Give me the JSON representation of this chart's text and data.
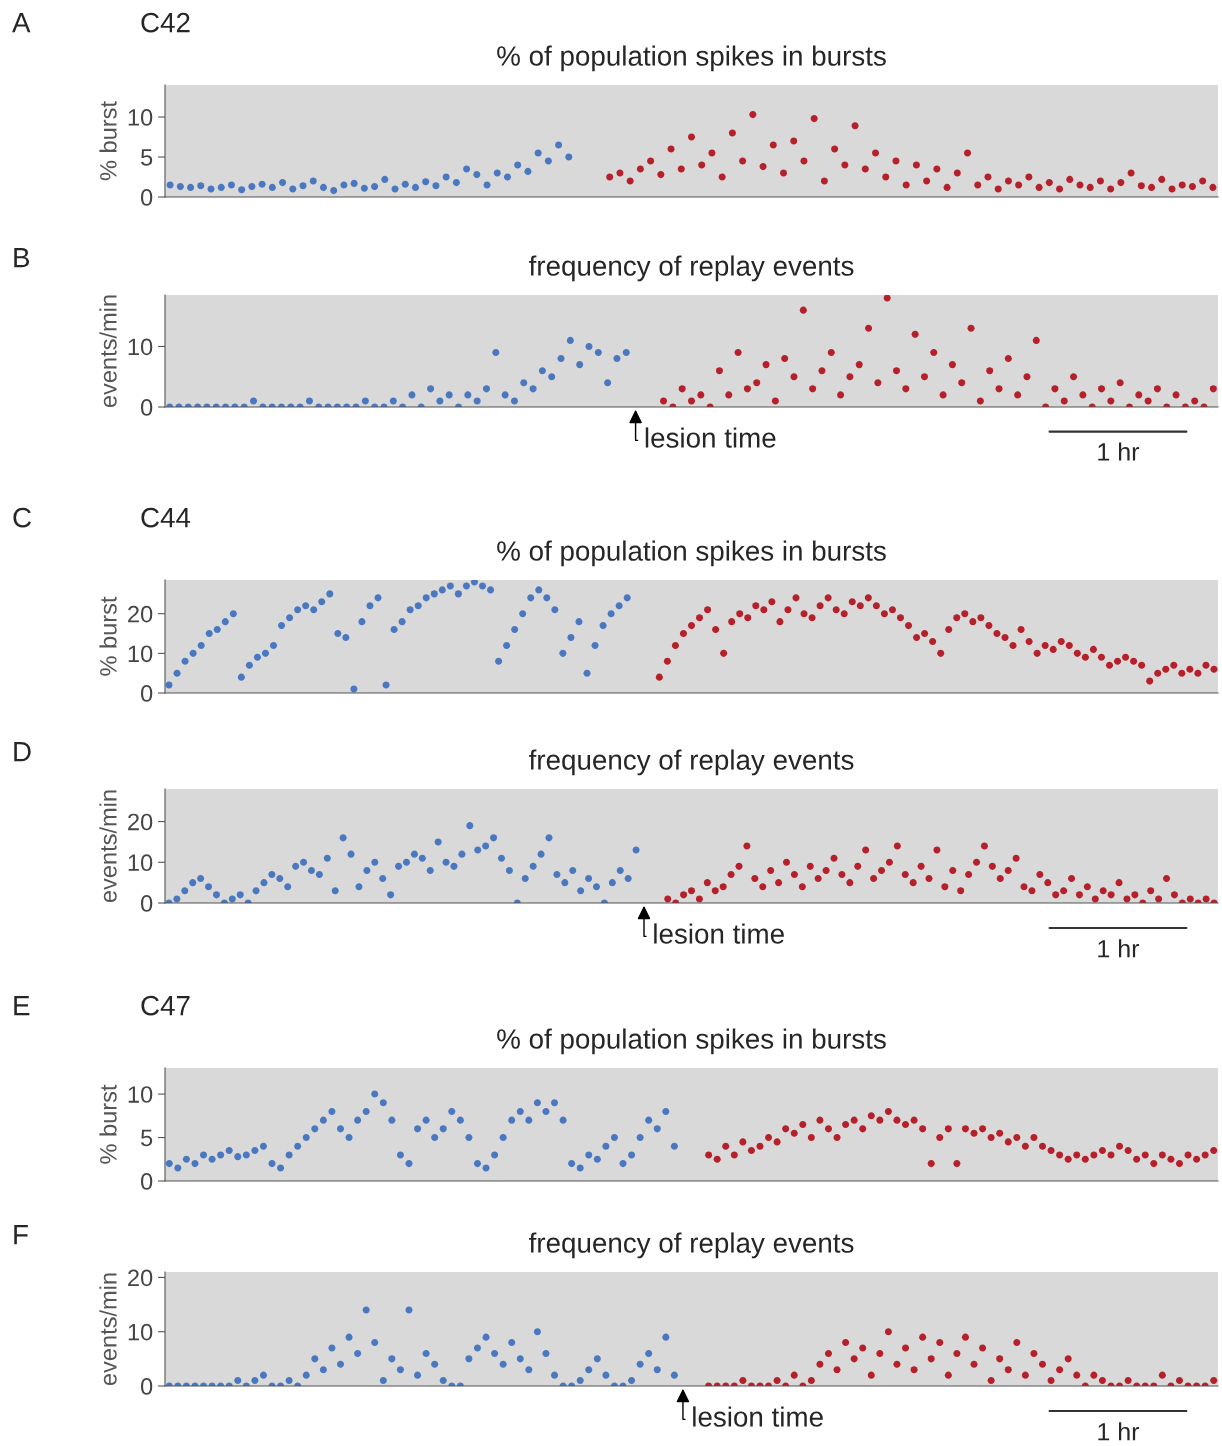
{
  "chart_data": [
    {
      "type": "scatter",
      "title": "% of population spikes in bursts",
      "ylabel": "% burst",
      "annotations": [
        "A",
        "C42"
      ],
      "marker": "circle",
      "tick_labels": "y",
      "ylim": [
        0,
        14
      ],
      "yticks": [
        0,
        5,
        10
      ],
      "categories": [
        null,
        null,
        null,
        null,
        null,
        null,
        null,
        null,
        null,
        null,
        null,
        null,
        null,
        null,
        null,
        null,
        null,
        null,
        null,
        null,
        null,
        null,
        null,
        null,
        null,
        null,
        null,
        null,
        null,
        null,
        null,
        null,
        null,
        null,
        null,
        null,
        null,
        null,
        null,
        null,
        null,
        null,
        null,
        null,
        null,
        null,
        null,
        null,
        null,
        null,
        null,
        null,
        null,
        null,
        null,
        null,
        null,
        null,
        null,
        null,
        null,
        null,
        null,
        null,
        null,
        null,
        null,
        null,
        null,
        null,
        null,
        null,
        null,
        null,
        null,
        null,
        null,
        null,
        null,
        null,
        null,
        null,
        null,
        null,
        null,
        null,
        null,
        null,
        null,
        null,
        null,
        null,
        null,
        null,
        null,
        null,
        null,
        null,
        null,
        null,
        null,
        null,
        null
      ],
      "series": [
        {
          "color": "#4a78c0",
          "values": [
            1.5,
            1.3,
            1.2,
            1.4,
            1.0,
            1.2,
            1.5,
            0.9,
            1.3,
            1.6,
            1.2,
            1.8,
            1.0,
            1.4,
            2.0,
            1.2,
            0.8,
            1.5,
            1.7,
            1.1,
            1.3,
            2.2,
            1.0,
            1.6,
            1.2,
            1.9,
            1.4,
            2.5,
            1.8,
            3.5,
            2.8,
            1.5,
            3.0,
            2.5,
            4.0,
            3.2,
            5.5,
            4.5,
            6.5,
            5.0,
            null,
            null,
            null,
            null,
            null,
            null,
            null,
            null,
            null,
            null,
            null,
            null,
            null,
            null,
            null,
            null,
            null,
            null,
            null,
            null,
            null,
            null,
            null,
            null,
            null,
            null,
            null,
            null,
            null,
            null,
            null,
            null,
            null,
            null,
            null,
            null,
            null,
            null,
            null,
            null,
            null,
            null,
            null,
            null,
            null,
            null,
            null,
            null,
            null,
            null,
            null,
            null,
            null,
            null,
            null,
            null,
            null,
            null,
            null,
            null,
            null,
            null,
            null
          ]
        },
        {
          "color": "#b5202a",
          "values": [
            null,
            null,
            null,
            null,
            null,
            null,
            null,
            null,
            null,
            null,
            null,
            null,
            null,
            null,
            null,
            null,
            null,
            null,
            null,
            null,
            null,
            null,
            null,
            null,
            null,
            null,
            null,
            null,
            null,
            null,
            null,
            null,
            null,
            null,
            null,
            null,
            null,
            null,
            null,
            null,
            null,
            null,
            null,
            2.5,
            3.0,
            2.0,
            3.5,
            4.5,
            2.8,
            6.0,
            3.5,
            7.5,
            4.0,
            5.5,
            2.5,
            8.0,
            4.5,
            10.3,
            3.8,
            6.5,
            3.0,
            7.0,
            4.5,
            9.8,
            2.0,
            6.0,
            4.0,
            8.9,
            3.5,
            5.5,
            2.5,
            4.5,
            1.5,
            4.0,
            2.0,
            3.5,
            1.2,
            3.0,
            5.5,
            1.5,
            2.5,
            1.0,
            2.0,
            1.5,
            2.5,
            1.2,
            1.8,
            1.0,
            2.2,
            1.5,
            1.2,
            2.0,
            1.0,
            1.8,
            3.0,
            1.4,
            1.2,
            2.2,
            1.0,
            1.5,
            1.3,
            2.0,
            1.2
          ]
        }
      ]
    },
    {
      "type": "scatter",
      "title": "frequency of replay events",
      "ylabel": "events/min",
      "annotations": [
        "B",
        "lesion time",
        "1 hr"
      ],
      "marker": "circle",
      "tick_labels": "y",
      "ylim": [
        0,
        18.5
      ],
      "yticks": [
        0,
        10
      ],
      "categories": [
        null,
        null,
        null,
        null,
        null,
        null,
        null,
        null,
        null,
        null,
        null,
        null,
        null,
        null,
        null,
        null,
        null,
        null,
        null,
        null,
        null,
        null,
        null,
        null,
        null,
        null,
        null,
        null,
        null,
        null,
        null,
        null,
        null,
        null,
        null,
        null,
        null,
        null,
        null,
        null,
        null,
        null,
        null,
        null,
        null,
        null,
        null,
        null,
        null,
        null,
        null,
        null,
        null,
        null,
        null,
        null,
        null,
        null,
        null,
        null,
        null,
        null,
        null,
        null,
        null,
        null,
        null,
        null,
        null,
        null,
        null,
        null,
        null,
        null,
        null,
        null,
        null,
        null,
        null,
        null,
        null,
        null,
        null,
        null,
        null,
        null,
        null,
        null,
        null,
        null,
        null,
        null,
        null,
        null,
        null,
        null,
        null,
        null,
        null,
        null,
        null,
        null,
        null,
        null,
        null,
        null,
        null,
        null,
        null,
        null,
        null,
        null,
        null
      ],
      "series": [
        {
          "color": "#4a78c0",
          "values": [
            0,
            0,
            0,
            0,
            0,
            0,
            0,
            0,
            0,
            1,
            0,
            0,
            0,
            0,
            0,
            1,
            0,
            0,
            0,
            0,
            0,
            1,
            0,
            0,
            1,
            0,
            2,
            0,
            3,
            1,
            2,
            0,
            2,
            1,
            3,
            9,
            2,
            1,
            4,
            3,
            6,
            5,
            8,
            11,
            7,
            10,
            9,
            4,
            8,
            9,
            null,
            null,
            null,
            null,
            null,
            null,
            null,
            null,
            null,
            null,
            null,
            null,
            null,
            null,
            null,
            null,
            null,
            null,
            null,
            null,
            null,
            null,
            null,
            null,
            null,
            null,
            null,
            null,
            null,
            null,
            null,
            null,
            null,
            null,
            null,
            null,
            null,
            null,
            null,
            null,
            null,
            null,
            null,
            null,
            null,
            null,
            null,
            null,
            null,
            null,
            null,
            null,
            null,
            null,
            null,
            null,
            null,
            null,
            null,
            null,
            null,
            null,
            null
          ]
        },
        {
          "color": "#b5202a",
          "values": [
            null,
            null,
            null,
            null,
            null,
            null,
            null,
            null,
            null,
            null,
            null,
            null,
            null,
            null,
            null,
            null,
            null,
            null,
            null,
            null,
            null,
            null,
            null,
            null,
            null,
            null,
            null,
            null,
            null,
            null,
            null,
            null,
            null,
            null,
            null,
            null,
            null,
            null,
            null,
            null,
            null,
            null,
            null,
            null,
            null,
            null,
            null,
            null,
            null,
            null,
            null,
            null,
            null,
            1,
            0,
            3,
            1,
            2,
            0,
            6,
            2,
            9,
            3,
            4,
            7,
            1,
            8,
            5,
            16,
            3,
            6,
            9,
            2,
            5,
            7,
            13,
            4,
            18,
            6,
            3,
            12,
            5,
            9,
            2,
            7,
            4,
            13,
            1,
            6,
            3,
            8,
            2,
            5,
            11,
            0,
            3,
            1,
            5,
            2,
            0,
            3,
            1,
            4,
            0,
            2,
            1,
            3,
            0,
            2,
            0,
            1,
            0,
            3
          ]
        }
      ]
    },
    {
      "type": "scatter",
      "title": "% of population spikes in bursts",
      "ylabel": "% burst",
      "annotations": [
        "C",
        "C44"
      ],
      "marker": "circle",
      "tick_labels": "y",
      "ylim": [
        0,
        28.5
      ],
      "yticks": [
        0,
        10,
        20
      ],
      "categories": [
        null,
        null,
        null,
        null,
        null,
        null,
        null,
        null,
        null,
        null,
        null,
        null,
        null,
        null,
        null,
        null,
        null,
        null,
        null,
        null,
        null,
        null,
        null,
        null,
        null,
        null,
        null,
        null,
        null,
        null,
        null,
        null,
        null,
        null,
        null,
        null,
        null,
        null,
        null,
        null,
        null,
        null,
        null,
        null,
        null,
        null,
        null,
        null,
        null,
        null,
        null,
        null,
        null,
        null,
        null,
        null,
        null,
        null,
        null,
        null,
        null,
        null,
        null,
        null,
        null,
        null,
        null,
        null,
        null,
        null,
        null,
        null,
        null,
        null,
        null,
        null,
        null,
        null,
        null,
        null,
        null,
        null,
        null,
        null,
        null,
        null,
        null,
        null,
        null,
        null,
        null,
        null,
        null,
        null,
        null,
        null,
        null,
        null,
        null,
        null,
        null,
        null,
        null,
        null,
        null,
        null,
        null,
        null,
        null,
        null,
        null,
        null,
        null,
        null,
        null,
        null,
        null,
        null,
        null,
        null,
        null,
        null,
        null,
        null,
        null,
        null,
        null,
        null,
        null,
        null,
        null
      ],
      "series": [
        {
          "color": "#4a78c0",
          "values": [
            2,
            5,
            8,
            10,
            12,
            15,
            16,
            18,
            20,
            4,
            7,
            9,
            10,
            12,
            17,
            19,
            21,
            22,
            21,
            23,
            25,
            15,
            14,
            1,
            18,
            22,
            24,
            2,
            16,
            18,
            21,
            22,
            24,
            25,
            26,
            27,
            25,
            27,
            28,
            27,
            26,
            8,
            12,
            16,
            20,
            24,
            26,
            24,
            21,
            10,
            14,
            18,
            5,
            12,
            17,
            20,
            22,
            24,
            null,
            null,
            null,
            null,
            null,
            null,
            null,
            null,
            null,
            null,
            null,
            null,
            null,
            null,
            null,
            null,
            null,
            null,
            null,
            null,
            null,
            null,
            null,
            null,
            null,
            null,
            null,
            null,
            null,
            null,
            null,
            null,
            null,
            null,
            null,
            null,
            null,
            null,
            null,
            null,
            null,
            null,
            null,
            null,
            null,
            null,
            null,
            null,
            null,
            null,
            null,
            null,
            null,
            null,
            null,
            null,
            null,
            null,
            null,
            null,
            null,
            null,
            null,
            null,
            null,
            null,
            null,
            null,
            null,
            null,
            null,
            null,
            null
          ]
        },
        {
          "color": "#b5202a",
          "values": [
            null,
            null,
            null,
            null,
            null,
            null,
            null,
            null,
            null,
            null,
            null,
            null,
            null,
            null,
            null,
            null,
            null,
            null,
            null,
            null,
            null,
            null,
            null,
            null,
            null,
            null,
            null,
            null,
            null,
            null,
            null,
            null,
            null,
            null,
            null,
            null,
            null,
            null,
            null,
            null,
            null,
            null,
            null,
            null,
            null,
            null,
            null,
            null,
            null,
            null,
            null,
            null,
            null,
            null,
            null,
            null,
            null,
            null,
            null,
            null,
            null,
            4,
            8,
            12,
            15,
            17,
            19,
            21,
            16,
            10,
            18,
            20,
            19,
            22,
            21,
            23,
            18,
            21,
            24,
            20,
            19,
            22,
            24,
            21,
            20,
            23,
            22,
            24,
            22,
            20,
            21,
            19,
            17,
            14,
            15,
            13,
            10,
            16,
            19,
            20,
            18,
            19,
            17,
            15,
            14,
            12,
            16,
            13,
            10,
            12,
            11,
            13,
            12,
            10,
            9,
            11,
            9,
            7,
            8,
            9,
            8,
            7,
            3,
            5,
            6,
            7,
            5,
            6,
            5,
            7,
            6
          ]
        }
      ]
    },
    {
      "type": "scatter",
      "title": "frequency of replay events",
      "ylabel": "events/min",
      "annotations": [
        "D",
        "lesion time",
        "1 hr"
      ],
      "marker": "circle",
      "tick_labels": "y",
      "ylim": [
        0,
        28
      ],
      "yticks": [
        0,
        10,
        20
      ],
      "categories": [
        null,
        null,
        null,
        null,
        null,
        null,
        null,
        null,
        null,
        null,
        null,
        null,
        null,
        null,
        null,
        null,
        null,
        null,
        null,
        null,
        null,
        null,
        null,
        null,
        null,
        null,
        null,
        null,
        null,
        null,
        null,
        null,
        null,
        null,
        null,
        null,
        null,
        null,
        null,
        null,
        null,
        null,
        null,
        null,
        null,
        null,
        null,
        null,
        null,
        null,
        null,
        null,
        null,
        null,
        null,
        null,
        null,
        null,
        null,
        null,
        null,
        null,
        null,
        null,
        null,
        null,
        null,
        null,
        null,
        null,
        null,
        null,
        null,
        null,
        null,
        null,
        null,
        null,
        null,
        null,
        null,
        null,
        null,
        null,
        null,
        null,
        null,
        null,
        null,
        null,
        null,
        null,
        null,
        null,
        null,
        null,
        null,
        null,
        null,
        null,
        null,
        null,
        null,
        null,
        null,
        null,
        null,
        null,
        null,
        null,
        null,
        null,
        null,
        null,
        null,
        null,
        null,
        null,
        null,
        null,
        null,
        null,
        null,
        null,
        null,
        null,
        null,
        null,
        null,
        null,
        null,
        null,
        null
      ],
      "series": [
        {
          "color": "#4a78c0",
          "values": [
            0,
            1,
            3,
            5,
            6,
            4,
            2,
            0,
            1,
            2,
            0,
            3,
            5,
            7,
            6,
            4,
            9,
            10,
            8,
            7,
            11,
            3,
            16,
            12,
            4,
            8,
            10,
            6,
            2,
            9,
            10,
            12,
            11,
            8,
            15,
            10,
            9,
            12,
            19,
            13,
            14,
            16,
            11,
            8,
            0,
            6,
            9,
            12,
            16,
            7,
            5,
            8,
            3,
            6,
            4,
            0,
            5,
            8,
            6,
            13,
            null,
            null,
            null,
            null,
            null,
            null,
            null,
            null,
            null,
            null,
            null,
            null,
            null,
            null,
            null,
            null,
            null,
            null,
            null,
            null,
            null,
            null,
            null,
            null,
            null,
            null,
            null,
            null,
            null,
            null,
            null,
            null,
            null,
            null,
            null,
            null,
            null,
            null,
            null,
            null,
            null,
            null,
            null,
            null,
            null,
            null,
            null,
            null,
            null,
            null,
            null,
            null,
            null,
            null,
            null,
            null,
            null,
            null,
            null,
            null,
            null,
            null,
            null,
            null,
            null,
            null,
            null,
            null,
            null,
            null,
            null,
            null,
            null
          ]
        },
        {
          "color": "#b5202a",
          "values": [
            null,
            null,
            null,
            null,
            null,
            null,
            null,
            null,
            null,
            null,
            null,
            null,
            null,
            null,
            null,
            null,
            null,
            null,
            null,
            null,
            null,
            null,
            null,
            null,
            null,
            null,
            null,
            null,
            null,
            null,
            null,
            null,
            null,
            null,
            null,
            null,
            null,
            null,
            null,
            null,
            null,
            null,
            null,
            null,
            null,
            null,
            null,
            null,
            null,
            null,
            null,
            null,
            null,
            null,
            null,
            null,
            null,
            null,
            null,
            null,
            null,
            null,
            null,
            1,
            0,
            2,
            3,
            1,
            5,
            3,
            4,
            7,
            9,
            14,
            6,
            4,
            8,
            5,
            10,
            7,
            4,
            9,
            6,
            8,
            11,
            7,
            5,
            9,
            13,
            6,
            8,
            10,
            14,
            7,
            5,
            9,
            6,
            13,
            4,
            8,
            3,
            7,
            10,
            14,
            9,
            6,
            8,
            11,
            4,
            3,
            7,
            5,
            2,
            3,
            6,
            2,
            4,
            1,
            3,
            2,
            5,
            1,
            2,
            0,
            3,
            1,
            6,
            2,
            0,
            1,
            0,
            1,
            0
          ]
        }
      ]
    },
    {
      "type": "scatter",
      "title": "% of population spikes in bursts",
      "ylabel": "% burst",
      "annotations": [
        "E",
        "C47"
      ],
      "marker": "circle",
      "tick_labels": "y",
      "ylim": [
        0,
        13
      ],
      "yticks": [
        0,
        5,
        10
      ],
      "categories": [
        null,
        null,
        null,
        null,
        null,
        null,
        null,
        null,
        null,
        null,
        null,
        null,
        null,
        null,
        null,
        null,
        null,
        null,
        null,
        null,
        null,
        null,
        null,
        null,
        null,
        null,
        null,
        null,
        null,
        null,
        null,
        null,
        null,
        null,
        null,
        null,
        null,
        null,
        null,
        null,
        null,
        null,
        null,
        null,
        null,
        null,
        null,
        null,
        null,
        null,
        null,
        null,
        null,
        null,
        null,
        null,
        null,
        null,
        null,
        null,
        null,
        null,
        null,
        null,
        null,
        null,
        null,
        null,
        null,
        null,
        null,
        null,
        null,
        null,
        null,
        null,
        null,
        null,
        null,
        null,
        null,
        null,
        null,
        null,
        null,
        null,
        null,
        null,
        null,
        null,
        null,
        null,
        null,
        null,
        null,
        null,
        null,
        null,
        null,
        null,
        null,
        null,
        null,
        null,
        null,
        null,
        null,
        null,
        null,
        null,
        null,
        null,
        null,
        null,
        null,
        null,
        null,
        null,
        null,
        null,
        null,
        null,
        null
      ],
      "series": [
        {
          "color": "#4a78c0",
          "values": [
            2,
            1.5,
            2.5,
            2,
            3,
            2.5,
            3,
            3.5,
            2.8,
            3,
            3.5,
            4,
            2,
            1.5,
            3,
            4,
            5,
            6,
            7,
            8,
            6,
            5,
            7,
            8,
            10,
            9,
            7,
            3,
            2,
            6,
            7,
            5,
            6,
            8,
            7,
            5,
            2,
            1.5,
            3,
            5,
            7,
            8,
            7,
            9,
            8,
            9,
            7,
            2,
            1.5,
            3,
            2.5,
            4,
            5,
            2,
            3,
            5,
            7,
            6,
            8,
            4,
            null,
            null,
            null,
            null,
            null,
            null,
            null,
            null,
            null,
            null,
            null,
            null,
            null,
            null,
            null,
            null,
            null,
            null,
            null,
            null,
            null,
            null,
            null,
            null,
            null,
            null,
            null,
            null,
            null,
            null,
            null,
            null,
            null,
            null,
            null,
            null,
            null,
            null,
            null,
            null,
            null,
            null,
            null,
            null,
            null,
            null,
            null,
            null,
            null,
            null,
            null,
            null,
            null,
            null,
            null,
            null,
            null,
            null,
            null,
            null,
            null,
            null,
            null
          ]
        },
        {
          "color": "#b5202a",
          "values": [
            null,
            null,
            null,
            null,
            null,
            null,
            null,
            null,
            null,
            null,
            null,
            null,
            null,
            null,
            null,
            null,
            null,
            null,
            null,
            null,
            null,
            null,
            null,
            null,
            null,
            null,
            null,
            null,
            null,
            null,
            null,
            null,
            null,
            null,
            null,
            null,
            null,
            null,
            null,
            null,
            null,
            null,
            null,
            null,
            null,
            null,
            null,
            null,
            null,
            null,
            null,
            null,
            null,
            null,
            null,
            null,
            null,
            null,
            null,
            null,
            null,
            null,
            null,
            3,
            2.5,
            4,
            3,
            4.5,
            3.5,
            4,
            5,
            4.5,
            6,
            5.5,
            6.5,
            5,
            7,
            6,
            5,
            6.5,
            7,
            6,
            7.5,
            7,
            8,
            7,
            6.5,
            7,
            6,
            2,
            5,
            6,
            2,
            6,
            5.5,
            6,
            5,
            5.5,
            4.5,
            5,
            4,
            5,
            4,
            3.5,
            3,
            2.5,
            3,
            2.5,
            3,
            3.5,
            3,
            4,
            3.5,
            2.5,
            3,
            2,
            3,
            2.5,
            2,
            3,
            2.5,
            3,
            3.5
          ]
        }
      ]
    },
    {
      "type": "scatter",
      "title": "frequency of replay events",
      "ylabel": "events/min",
      "annotations": [
        "F",
        "lesion time",
        "1 hr"
      ],
      "marker": "circle",
      "tick_labels": "y",
      "ylim": [
        0,
        21
      ],
      "yticks": [
        0,
        10,
        20
      ],
      "categories": [
        null,
        null,
        null,
        null,
        null,
        null,
        null,
        null,
        null,
        null,
        null,
        null,
        null,
        null,
        null,
        null,
        null,
        null,
        null,
        null,
        null,
        null,
        null,
        null,
        null,
        null,
        null,
        null,
        null,
        null,
        null,
        null,
        null,
        null,
        null,
        null,
        null,
        null,
        null,
        null,
        null,
        null,
        null,
        null,
        null,
        null,
        null,
        null,
        null,
        null,
        null,
        null,
        null,
        null,
        null,
        null,
        null,
        null,
        null,
        null,
        null,
        null,
        null,
        null,
        null,
        null,
        null,
        null,
        null,
        null,
        null,
        null,
        null,
        null,
        null,
        null,
        null,
        null,
        null,
        null,
        null,
        null,
        null,
        null,
        null,
        null,
        null,
        null,
        null,
        null,
        null,
        null,
        null,
        null,
        null,
        null,
        null,
        null,
        null,
        null,
        null,
        null,
        null,
        null,
        null,
        null,
        null,
        null,
        null,
        null,
        null,
        null,
        null,
        null,
        null,
        null,
        null,
        null,
        null,
        null,
        null,
        null,
        null
      ],
      "series": [
        {
          "color": "#4a78c0",
          "values": [
            0,
            0,
            0,
            0,
            0,
            0,
            0,
            0,
            1,
            0,
            1,
            2,
            0,
            0,
            1,
            0,
            2,
            5,
            3,
            7,
            4,
            9,
            6,
            14,
            8,
            1,
            5,
            3,
            14,
            2,
            6,
            4,
            1,
            0,
            0,
            5,
            7,
            9,
            6,
            4,
            8,
            5,
            3,
            10,
            6,
            2,
            0,
            0,
            1,
            3,
            5,
            2,
            0,
            0,
            1,
            4,
            6,
            3,
            9,
            2,
            null,
            null,
            null,
            null,
            null,
            null,
            null,
            null,
            null,
            null,
            null,
            null,
            null,
            null,
            null,
            null,
            null,
            null,
            null,
            null,
            null,
            null,
            null,
            null,
            null,
            null,
            null,
            null,
            null,
            null,
            null,
            null,
            null,
            null,
            null,
            null,
            null,
            null,
            null,
            null,
            null,
            null,
            null,
            null,
            null,
            null,
            null,
            null,
            null,
            null,
            null,
            null,
            null,
            null,
            null,
            null,
            null,
            null,
            null,
            null,
            null,
            null,
            null
          ]
        },
        {
          "color": "#b5202a",
          "values": [
            null,
            null,
            null,
            null,
            null,
            null,
            null,
            null,
            null,
            null,
            null,
            null,
            null,
            null,
            null,
            null,
            null,
            null,
            null,
            null,
            null,
            null,
            null,
            null,
            null,
            null,
            null,
            null,
            null,
            null,
            null,
            null,
            null,
            null,
            null,
            null,
            null,
            null,
            null,
            null,
            null,
            null,
            null,
            null,
            null,
            null,
            null,
            null,
            null,
            null,
            null,
            null,
            null,
            null,
            null,
            null,
            null,
            null,
            null,
            null,
            null,
            null,
            null,
            0,
            0,
            0,
            0,
            1,
            0,
            0,
            0,
            1,
            0,
            2,
            0,
            1,
            4,
            6,
            3,
            8,
            5,
            7,
            2,
            6,
            10,
            4,
            7,
            3,
            9,
            5,
            8,
            2,
            6,
            9,
            4,
            7,
            1,
            5,
            3,
            8,
            2,
            6,
            4,
            1,
            3,
            5,
            2,
            0,
            2,
            1,
            0,
            0,
            1,
            0,
            0,
            0,
            2,
            0,
            1,
            0,
            0,
            0,
            1
          ]
        }
      ]
    }
  ]
}
